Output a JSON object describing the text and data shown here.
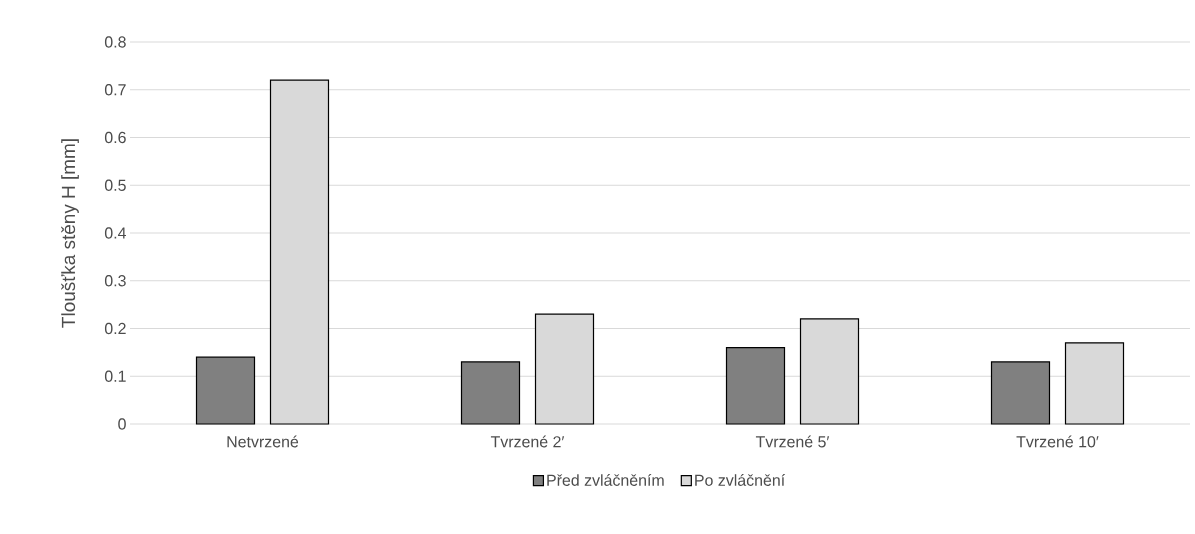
{
  "chart_data": {
    "type": "bar",
    "ylabel": "Tloušťka stěny H [mm]",
    "categories": [
      "Netvrzené",
      "Tvrzené 2′",
      "Tvrzené 5′",
      "Tvrzené 10′"
    ],
    "series": [
      {
        "name": "Před zvláčněním",
        "color": "#808080",
        "values": [
          0.14,
          0.13,
          0.16,
          0.13
        ]
      },
      {
        "name": "Po zvláčnění",
        "color": "#d9d9d9",
        "values": [
          0.72,
          0.23,
          0.22,
          0.17
        ]
      }
    ],
    "ylim": [
      0,
      0.8
    ],
    "yticks": [
      0,
      0.1,
      0.2,
      0.3,
      0.4,
      0.5,
      0.6,
      0.7,
      0.8
    ],
    "grid": "y",
    "legend": "bottom"
  }
}
